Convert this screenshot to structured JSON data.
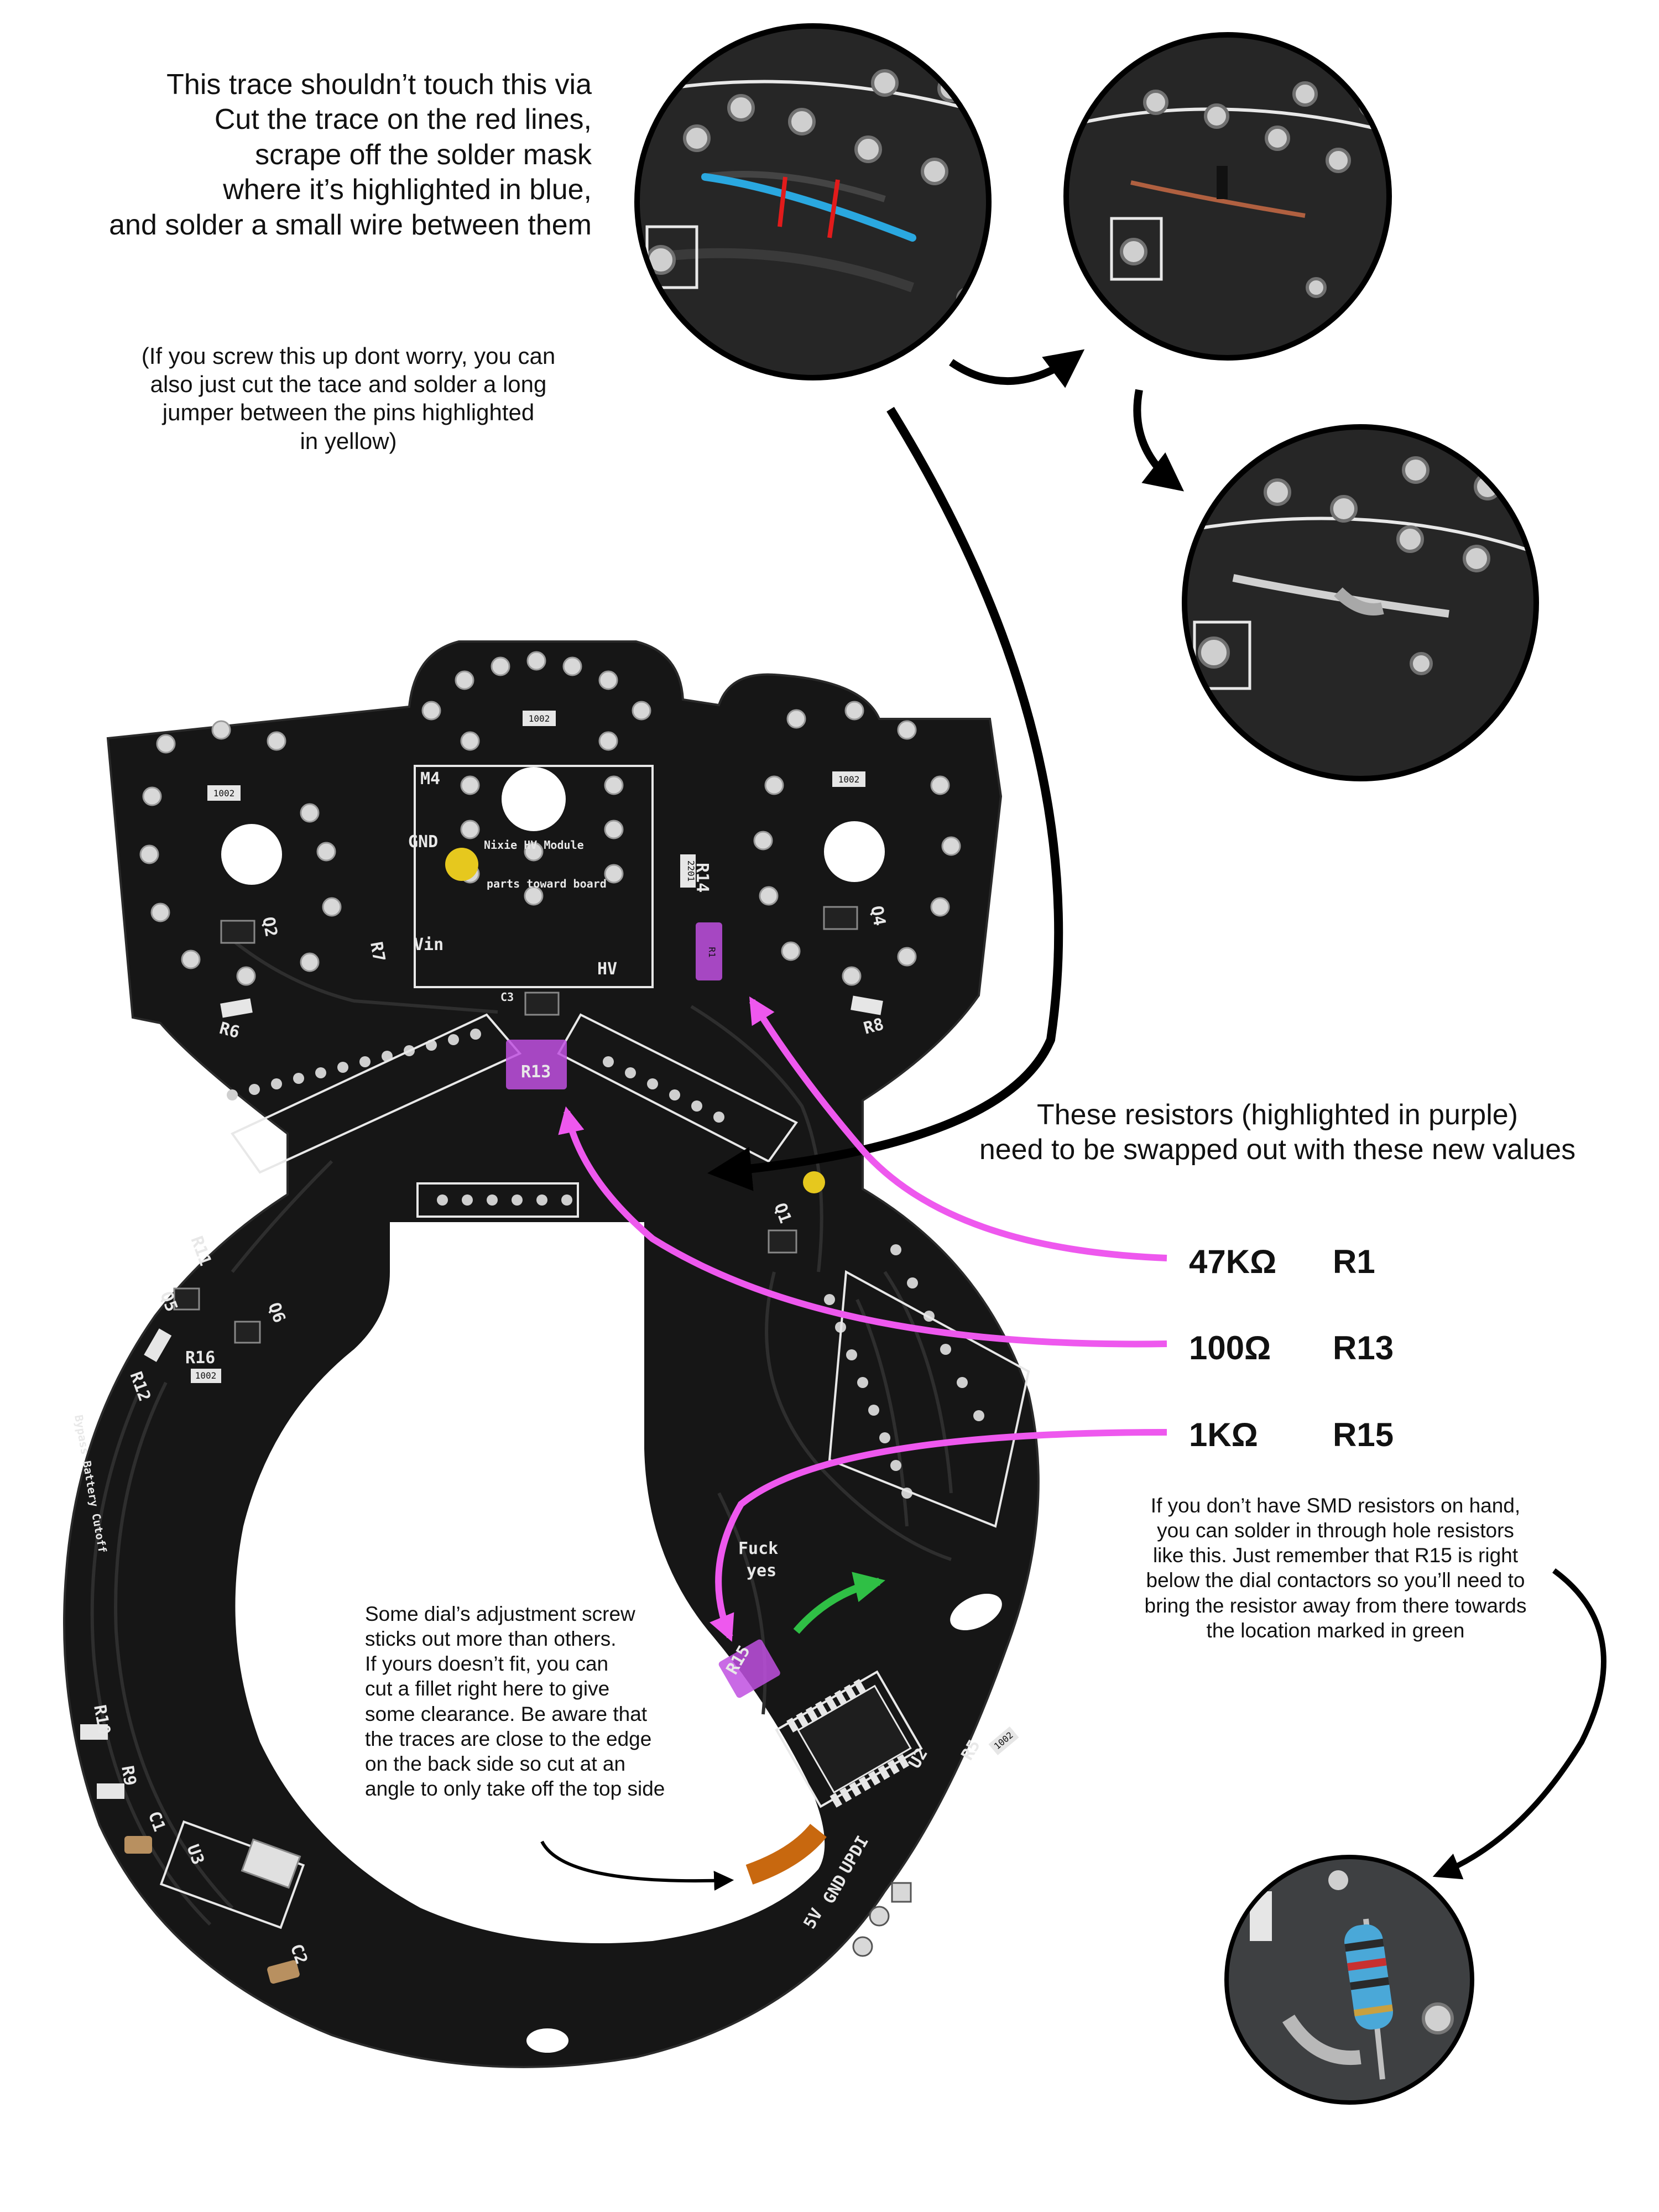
{
  "notes": {
    "trace_fix": "This trace shouldn’t touch this via\nCut the trace on the red lines,\nscrape off the solder mask\nwhere it’s highlighted in blue,\nand solder a small wire between them",
    "trace_fix_alt": "(If you screw this up dont worry, you can\nalso just cut the tace and solder a long\njumper between the pins highlighted\nin yellow)",
    "resistor_swap": "These resistors (highlighted in purple)\nneed to be swapped out with these new values",
    "smd_tip": "If you don’t have SMD resistors on hand,\nyou can solder in through hole resistors\nlike this. Just remember that R15 is right\nbelow the dial contactors so you’ll need to\nbring the resistor away from there towards\nthe location marked in green",
    "fillet_tip": "Some dial’s adjustment screw\nsticks out more than others.\nIf yours doesn’t fit, you can\ncut a fillet right here to give\nsome clearance. Be aware that\nthe traces are close to the edge\non the back side so cut at an\nangle to only take off the top side"
  },
  "resistor_values": [
    {
      "value": "47KΩ",
      "ref": "R1"
    },
    {
      "value": "100Ω",
      "ref": "R13"
    },
    {
      "value": "1KΩ",
      "ref": "R15"
    }
  ],
  "pcb_silkscreen": {
    "module_ref": "M4",
    "module_name": "Nixie HV Module",
    "module_orientation": "parts toward board",
    "pin_gnd": "GND",
    "pin_vin": "Vin",
    "pin_hv": "HV",
    "cap_ref": "C3",
    "jumper_label": "Bypass Battery Cutoff",
    "easter_egg_line1": "Fuck",
    "easter_egg_line2": "yes",
    "prog_updi": "UPDI",
    "prog_gnd": "GND",
    "prog_5v": "5V",
    "refs": {
      "r1": "R1",
      "r5": "R5",
      "r6": "R6",
      "r7": "R7",
      "r8": "R8",
      "r9": "R9",
      "r10": "R10",
      "r11": "R11",
      "r12": "R12",
      "r13": "R13",
      "r14": "R14",
      "r15": "R15",
      "r16": "R16",
      "q1": "Q1",
      "q2": "Q2",
      "q4": "Q4",
      "q5": "Q5",
      "q6": "Q6",
      "c1": "C1",
      "c2": "C2",
      "u2": "U2",
      "u3": "U3"
    },
    "smd_markings": {
      "a": "1002",
      "b": "1002",
      "c": "1002",
      "d": "2201",
      "e": "1002",
      "f": "1002"
    }
  },
  "colors": {
    "board": "#161616",
    "pad": "#d8d8d8",
    "highlight_purple": "#c050e0",
    "highlight_yellow": "#e6c81e",
    "arrow_magenta": "#ee58ee",
    "arrow_green": "#2fbf45",
    "fillet_orange": "#c8680f",
    "cut_red": "#e21b1b",
    "scrape_blue": "#2aa8e0"
  }
}
